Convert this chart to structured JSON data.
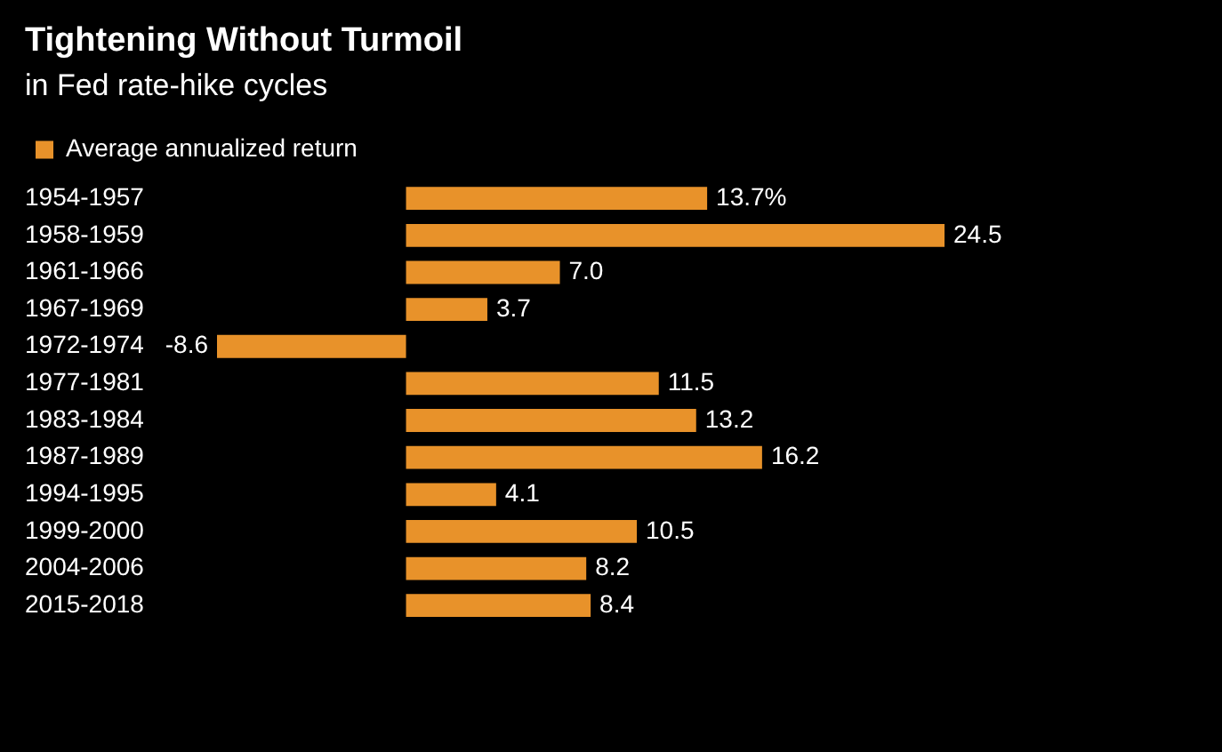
{
  "chart_data": {
    "type": "bar",
    "orientation": "horizontal",
    "title": "Tightening Without Turmoil",
    "subtitle": "in Fed rate-hike cycles",
    "categories": [
      "1954-1957",
      "1958-1959",
      "1961-1966",
      "1967-1969",
      "1972-1974",
      "1977-1981",
      "1983-1984",
      "1987-1989",
      "1994-1995",
      "1999-2000",
      "2004-2006",
      "2015-2018"
    ],
    "series": [
      {
        "name": "Average annualized return",
        "color": "#e8922a",
        "values": [
          13.7,
          24.5,
          7.0,
          3.7,
          -8.6,
          11.5,
          13.2,
          16.2,
          4.1,
          10.5,
          8.2,
          8.4
        ],
        "value_labels": [
          "13.7%",
          "24.5",
          "7.0",
          "3.7",
          "-8.6",
          "11.5",
          "13.2",
          "16.2",
          "4.1",
          "10.5",
          "8.2",
          "8.4"
        ]
      }
    ],
    "legend": "top left"
  }
}
